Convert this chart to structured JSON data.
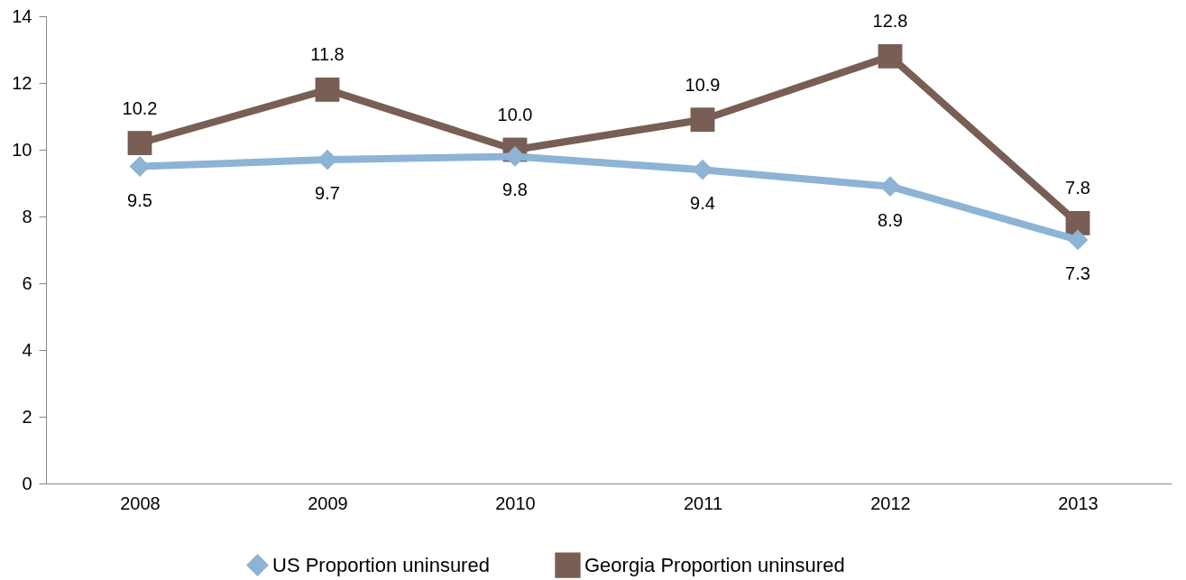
{
  "chart_data": {
    "type": "line",
    "categories": [
      "2008",
      "2009",
      "2010",
      "2011",
      "2012",
      "2013"
    ],
    "series": [
      {
        "name": "US Proportion uninsured",
        "color": "#8db3d5",
        "marker": "diamond",
        "values": [
          9.5,
          9.7,
          9.8,
          9.4,
          8.9,
          7.3
        ],
        "value_labels": [
          "9.5",
          "9.7",
          "9.8",
          "9.4",
          "8.9",
          "7.3"
        ]
      },
      {
        "name": "Georgia Proportion uninsured",
        "color": "#785e54",
        "marker": "square",
        "values": [
          10.2,
          11.8,
          10.0,
          10.9,
          12.8,
          7.8
        ],
        "value_labels": [
          "10.2",
          "11.8",
          "10.0",
          "10.9",
          "12.8",
          "7.8"
        ]
      }
    ],
    "ylim": [
      0,
      14
    ],
    "yticks": [
      0,
      2,
      4,
      6,
      8,
      10,
      12,
      14
    ],
    "grid": false,
    "legend": "bottom",
    "line_style": "solid"
  }
}
